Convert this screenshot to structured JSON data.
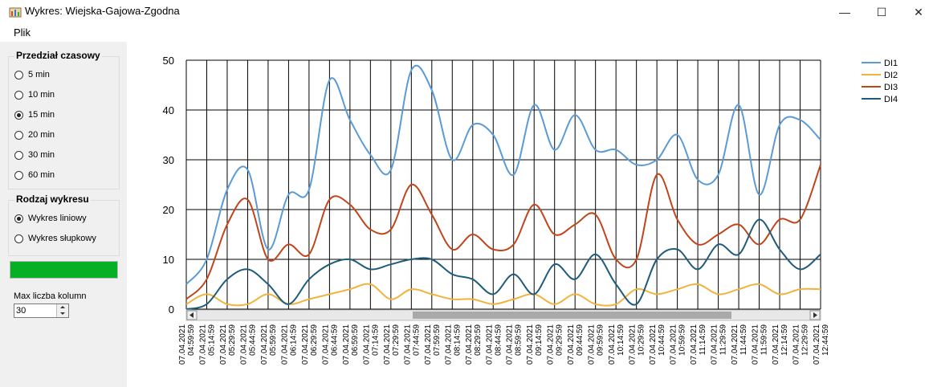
{
  "window": {
    "title": "Wykres: Wiejska-Gajowa-Zgodna",
    "minimize_glyph": "—",
    "maximize_glyph": "☐",
    "close_glyph": "✕"
  },
  "menu": {
    "items": [
      "Plik"
    ]
  },
  "time_interval": {
    "title": "Przedział czasowy",
    "options": [
      "5 min",
      "10 min",
      "15 min",
      "20 min",
      "30 min",
      "60 min"
    ],
    "selected": "15 min"
  },
  "chart_type": {
    "title": "Rodzaj wykresu",
    "options": [
      "Wykres liniowy",
      "Wykres słupkowy"
    ],
    "selected": "Wykres liniowy"
  },
  "progress": {
    "value": 1.0,
    "color": "#06b025"
  },
  "max_columns": {
    "label": "Max liczba kolumn",
    "value": "30"
  },
  "chart_data": {
    "type": "line",
    "x": [
      "07.04.2021 04:59:59",
      "07.04.2021 05:14:59",
      "07.04.2021 05:29:59",
      "07.04.2021 05:44:59",
      "07.04.2021 05:59:59",
      "07.04.2021 06:14:59",
      "07.04.2021 06:29:59",
      "07.04.2021 06:44:59",
      "07.04.2021 06:59:59",
      "07.04.2021 07:14:59",
      "07.04.2021 07:29:59",
      "07.04.2021 07:44:59",
      "07.04.2021 07:59:59",
      "07.04.2021 08:14:59",
      "07.04.2021 08:29:59",
      "07.04.2021 08:44:59",
      "07.04.2021 08:59:59",
      "07.04.2021 09:14:59",
      "07.04.2021 09:29:59",
      "07.04.2021 09:44:59",
      "07.04.2021 09:59:59",
      "07.04.2021 10:14:59",
      "07.04.2021 10:29:59",
      "07.04.2021 10:44:59",
      "07.04.2021 10:59:59",
      "07.04.2021 11:14:59",
      "07.04.2021 11:29:59",
      "07.04.2021 11:44:59",
      "07.04.2021 11:59:59",
      "07.04.2021 12:14:59",
      "07.04.2021 12:29:59",
      "07.04.2021 12:44:59"
    ],
    "ylim": [
      0,
      50
    ],
    "yticks": [
      0,
      10,
      20,
      30,
      40,
      50
    ],
    "grid": true,
    "legend_position": "top-right",
    "series": [
      {
        "name": "DI1",
        "color": "#5b9bd5",
        "values": [
          5,
          10,
          24,
          28,
          12,
          23,
          24,
          46,
          38,
          31,
          28,
          48,
          44,
          30,
          37,
          35,
          27,
          41,
          32,
          39,
          32,
          32,
          29,
          30,
          35,
          26,
          27,
          41,
          23,
          37,
          38,
          34
        ]
      },
      {
        "name": "DI2",
        "color": "#f2b33d",
        "values": [
          1,
          3,
          1,
          1,
          3,
          1,
          2,
          3,
          4,
          5,
          2,
          4,
          3,
          2,
          2,
          1,
          2,
          3,
          1,
          3,
          1,
          1,
          4,
          3,
          4,
          5,
          3,
          4,
          5,
          3,
          4,
          4
        ]
      },
      {
        "name": "DI3",
        "color": "#c0451b",
        "values": [
          2,
          6,
          17,
          22,
          10,
          13,
          11,
          22,
          21,
          16,
          16,
          25,
          19,
          12,
          15,
          12,
          13,
          21,
          15,
          17,
          19,
          10,
          10,
          27,
          18,
          13,
          15,
          17,
          13,
          18,
          18,
          29
        ]
      },
      {
        "name": "DI4",
        "color": "#1f5c7a",
        "values": [
          0,
          1,
          6,
          8,
          5,
          1,
          6,
          9,
          10,
          8,
          9,
          10,
          10,
          7,
          6,
          3,
          7,
          3,
          9,
          6,
          11,
          5,
          1,
          10,
          12,
          8,
          13,
          11,
          18,
          12,
          8,
          11
        ]
      }
    ]
  }
}
